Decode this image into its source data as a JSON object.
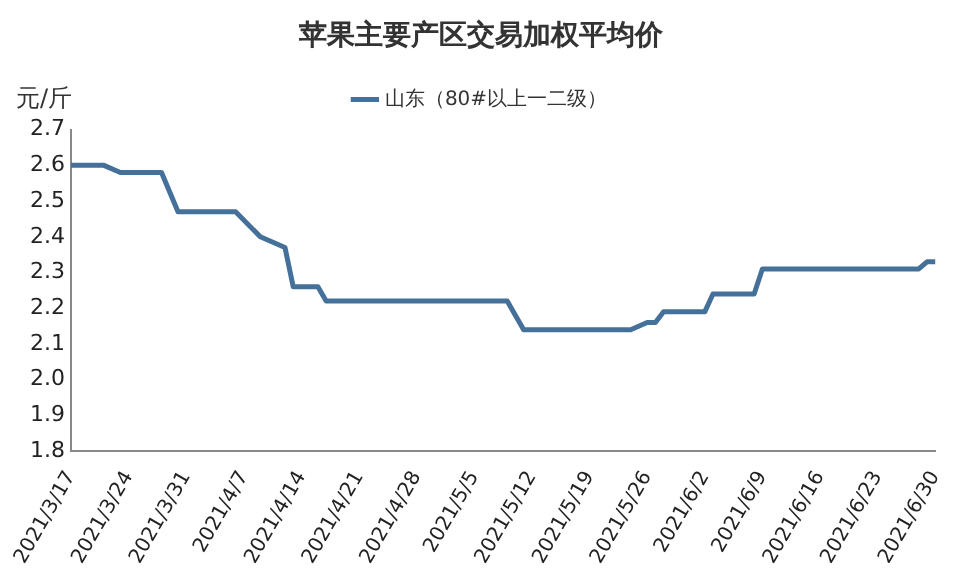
{
  "chart_data": {
    "type": "line",
    "title": "苹果主要产区交易加权平均价",
    "ylabel": "元/斤",
    "legend": "top",
    "x": [
      "2021-03-17",
      "2021-03-21",
      "2021-03-23",
      "2021-03-28",
      "2021-03-30",
      "2021-04-06",
      "2021-04-09",
      "2021-04-12",
      "2021-04-13",
      "2021-04-16",
      "2021-04-17",
      "2021-05-09",
      "2021-05-11",
      "2021-05-24",
      "2021-05-26",
      "2021-05-27",
      "2021-05-28",
      "2021-06-02",
      "2021-06-03",
      "2021-06-08",
      "2021-06-09",
      "2021-06-28",
      "2021-06-29",
      "2021-06-30"
    ],
    "series": [
      {
        "name": "山东（80#以上一二级）",
        "color": "#44709a",
        "values": [
          2.6,
          2.6,
          2.58,
          2.58,
          2.47,
          2.47,
          2.4,
          2.37,
          2.26,
          2.26,
          2.22,
          2.22,
          2.14,
          2.14,
          2.16,
          2.16,
          2.19,
          2.19,
          2.24,
          2.24,
          2.31,
          2.31,
          2.33,
          2.33
        ]
      }
    ],
    "ylim": [
      1.8,
      2.7
    ],
    "yticks": [
      1.8,
      1.9,
      {
        "value": 2,
        "label": "2.0"
      },
      2.1,
      2.2,
      2.3,
      2.4,
      2.5,
      2.6,
      2.7
    ],
    "xlim": [
      "2021-03-17",
      "2021-06-30"
    ],
    "xticks": [
      {
        "value": "2021-03-17",
        "label": "2021/3/17"
      },
      {
        "value": "2021-03-24",
        "label": "2021/3/24"
      },
      {
        "value": "2021-03-31",
        "label": "2021/3/31"
      },
      {
        "value": "2021-04-07",
        "label": "2021/4/7"
      },
      {
        "value": "2021-04-14",
        "label": "2021/4/14"
      },
      {
        "value": "2021-04-21",
        "label": "2021/4/21"
      },
      {
        "value": "2021-04-28",
        "label": "2021/4/28"
      },
      {
        "value": "2021-05-05",
        "label": "2021/5/5"
      },
      {
        "value": "2021-05-12",
        "label": "2021/5/12"
      },
      {
        "value": "2021-05-19",
        "label": "2021/5/19"
      },
      {
        "value": "2021-05-26",
        "label": "2021/5/26"
      },
      {
        "value": "2021-06-02",
        "label": "2021/6/2"
      },
      {
        "value": "2021-06-09",
        "label": "2021/6/9"
      },
      {
        "value": "2021-06-16",
        "label": "2021/6/16"
      },
      {
        "value": "2021-06-23",
        "label": "2021/6/23"
      },
      {
        "value": "2021-06-30",
        "label": "2021/6/30"
      }
    ],
    "grid": false,
    "marker": "none",
    "line_style": "solid"
  }
}
